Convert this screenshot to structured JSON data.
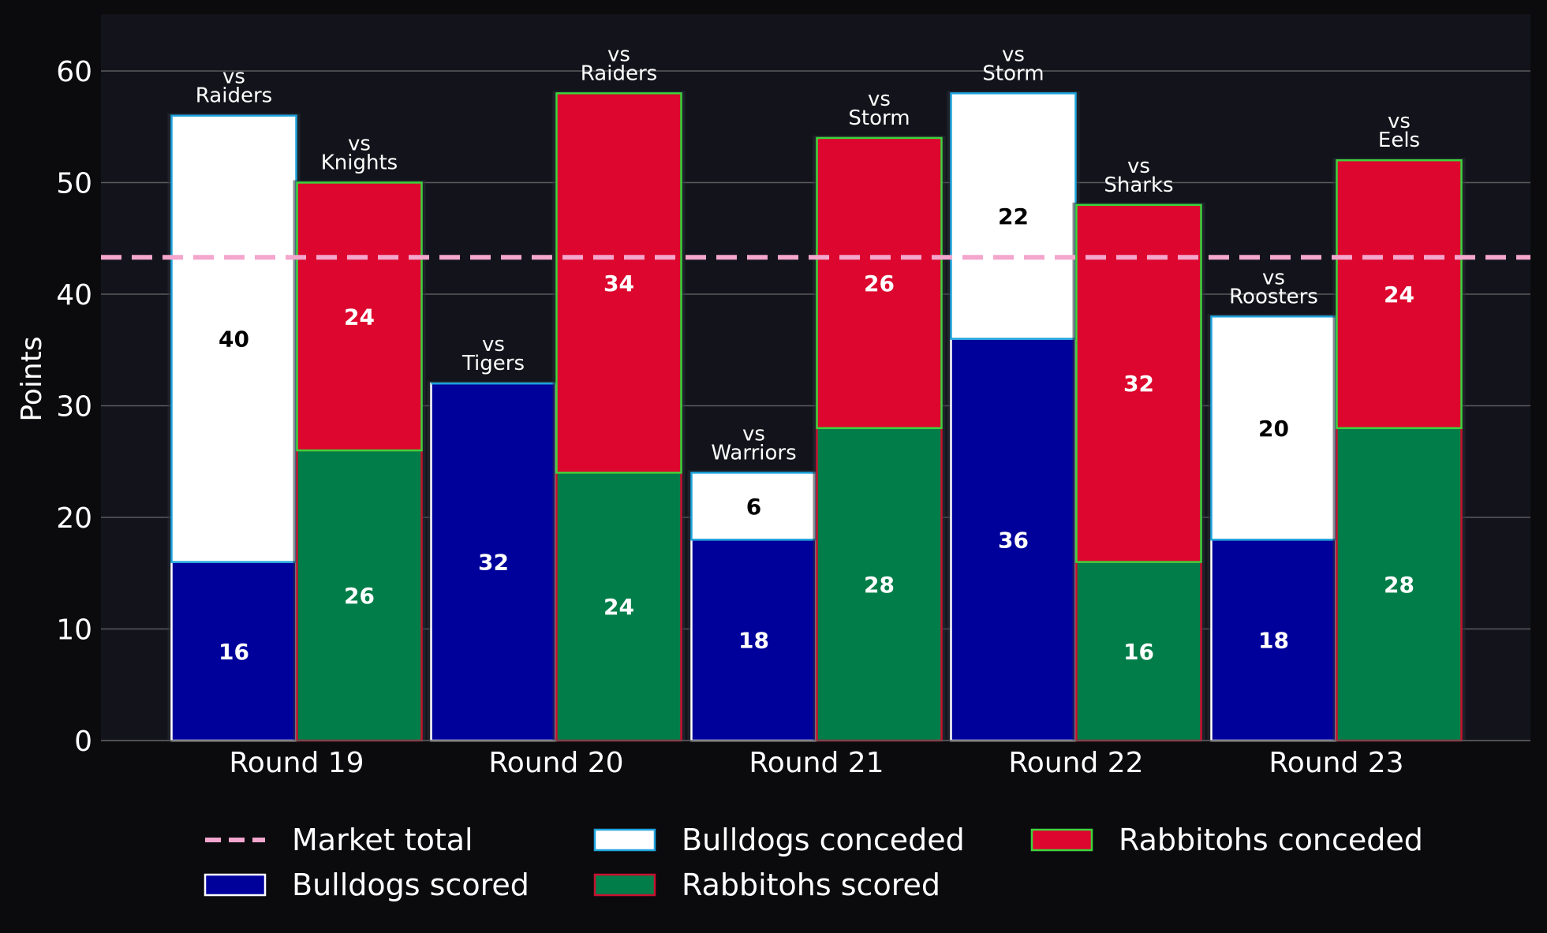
{
  "colors": {
    "page_bg": "#0b0b0e",
    "plot_bg": "#13141b",
    "grid": "#5a5a5e",
    "text": "#ffffff",
    "bulldogs_scored": "#00009b",
    "bulldogs_conceded": "#ffffff",
    "bulldogs_edge": "#1ea4dd",
    "rabbitohs_scored": "#007d48",
    "rabbitohs_conceded": "#dc062e",
    "rabbitohs_edge": "#3cd43c",
    "rabbitohs_scored_edge": "#c8102e",
    "market_total": "#f4a6cd"
  },
  "chart_data": {
    "type": "bar",
    "stacked": true,
    "grouped": true,
    "categories": [
      "Round 19",
      "Round 20",
      "Round 21",
      "Round 22",
      "Round 23"
    ],
    "ylabel": "Points",
    "xlabel": "",
    "ylim": [
      0,
      65
    ],
    "yticks": [
      0,
      10,
      20,
      30,
      40,
      50,
      60
    ],
    "grid": "horizontal",
    "legend_position": "bottom",
    "market_total": 43.3,
    "series": [
      {
        "name": "Bulldogs scored",
        "team": "bulldogs",
        "kind": "scored",
        "values": [
          16,
          32,
          18,
          36,
          18
        ]
      },
      {
        "name": "Bulldogs conceded",
        "team": "bulldogs",
        "kind": "conceded",
        "values": [
          40,
          0,
          6,
          22,
          20
        ]
      },
      {
        "name": "Rabbitohs scored",
        "team": "rabbitohs",
        "kind": "scored",
        "values": [
          26,
          24,
          28,
          16,
          28
        ]
      },
      {
        "name": "Rabbitohs conceded",
        "team": "rabbitohs",
        "kind": "conceded",
        "values": [
          24,
          34,
          26,
          32,
          24
        ]
      }
    ],
    "opponents": {
      "bulldogs": [
        "Raiders",
        "Tigers",
        "Warriors",
        "Storm",
        "Roosters"
      ],
      "rabbitohs": [
        "Knights",
        "Raiders",
        "Storm",
        "Sharks",
        "Eels"
      ]
    },
    "opponent_prefix": "vs",
    "legend": [
      {
        "label": "Market total",
        "key": "market"
      },
      {
        "label": "Bulldogs scored",
        "key": "bulldogs_scored"
      },
      {
        "label": "Bulldogs conceded",
        "key": "bulldogs_conceded"
      },
      {
        "label": "Rabbitohs scored",
        "key": "rabbitohs_scored"
      },
      {
        "label": "Rabbitohs conceded",
        "key": "rabbitohs_conceded"
      }
    ]
  }
}
